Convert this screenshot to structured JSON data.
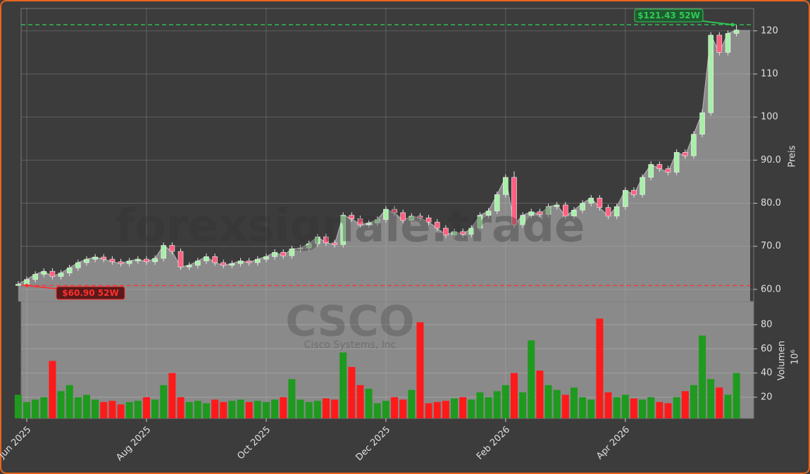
{
  "chart_data": {
    "type": "candlestick",
    "watermark": "forexsignale.trade",
    "symbol": "CSCO",
    "company": "Cisco Systems, Inc",
    "y_label": "Preis",
    "volume_label": "Volumen",
    "volume_unit": "10⁶",
    "categories": [
      null,
      "Jun 2025",
      null,
      null,
      null,
      null,
      null,
      null,
      null,
      null,
      null,
      null,
      null,
      null,
      null,
      "Aug 2025",
      null,
      null,
      null,
      null,
      null,
      null,
      null,
      null,
      null,
      null,
      null,
      null,
      null,
      "Oct 2025",
      null,
      null,
      null,
      null,
      null,
      null,
      null,
      null,
      null,
      null,
      null,
      null,
      null,
      "Dec 2025",
      null,
      null,
      null,
      null,
      null,
      null,
      null,
      null,
      null,
      null,
      null,
      null,
      null,
      "Feb 2026",
      null,
      null,
      null,
      null,
      null,
      null,
      null,
      null,
      null,
      null,
      null,
      null,
      null,
      "Apr 2026",
      null,
      null,
      null,
      null,
      null,
      null,
      null,
      null,
      null,
      null,
      null,
      null,
      null
    ],
    "open": [
      60.9,
      61.2,
      62.3,
      63.5,
      64.2,
      63.0,
      63.8,
      65.0,
      66.2,
      67.0,
      67.5,
      67.0,
      66.4,
      66.0,
      66.6,
      67.0,
      66.4,
      67.2,
      70.2,
      68.8,
      65.2,
      65.6,
      66.6,
      67.6,
      66.2,
      65.6,
      66.0,
      66.6,
      66.2,
      67.0,
      67.6,
      68.6,
      67.8,
      69.4,
      69.6,
      70.6,
      72.2,
      70.8,
      70.4,
      77.2,
      76.4,
      75.0,
      75.4,
      76.2,
      78.6,
      77.8,
      76.0,
      77.0,
      76.6,
      75.6,
      74.2,
      72.6,
      73.4,
      72.8,
      74.2,
      77.2,
      78.2,
      82.0,
      86.0,
      75.0,
      77.2,
      78.0,
      77.4,
      79.2,
      79.6,
      77.0,
      78.4,
      80.0,
      81.2,
      79.0,
      77.0,
      79.2,
      83.0,
      82.0,
      86.0,
      89.0,
      88.0,
      87.2,
      91.8,
      91.0,
      96.0,
      101.0,
      119.0,
      115.0,
      119.4
    ],
    "high": [
      61.9,
      63.0,
      64.2,
      64.9,
      64.9,
      64.5,
      65.7,
      66.9,
      67.7,
      68.2,
      68.2,
      67.7,
      67.1,
      67.3,
      67.7,
      67.7,
      67.9,
      70.9,
      70.9,
      69.5,
      66.3,
      67.3,
      68.3,
      68.3,
      66.9,
      66.7,
      67.3,
      67.3,
      67.7,
      68.3,
      69.3,
      69.3,
      70.1,
      70.3,
      71.3,
      72.9,
      72.9,
      71.5,
      77.9,
      77.9,
      77.1,
      76.1,
      76.9,
      79.3,
      79.3,
      78.5,
      77.7,
      77.7,
      77.3,
      76.3,
      74.9,
      74.1,
      74.1,
      74.9,
      77.9,
      78.9,
      82.7,
      86.7,
      87.4,
      77.9,
      78.7,
      78.7,
      79.9,
      80.3,
      80.3,
      79.1,
      80.7,
      81.9,
      81.9,
      79.7,
      79.9,
      83.7,
      83.7,
      86.7,
      89.7,
      89.7,
      88.7,
      92.5,
      92.5,
      96.7,
      101.7,
      119.7,
      119.7,
      120.1,
      121.43
    ],
    "low": [
      60.9,
      60.5,
      61.6,
      62.8,
      62.3,
      62.3,
      63.1,
      64.3,
      65.5,
      66.3,
      66.3,
      65.7,
      65.3,
      65.3,
      65.9,
      65.7,
      65.7,
      66.5,
      68.1,
      64.5,
      64.5,
      64.9,
      65.9,
      65.5,
      64.9,
      64.9,
      65.3,
      65.5,
      65.5,
      66.3,
      66.9,
      67.1,
      67.1,
      68.7,
      68.9,
      69.9,
      70.1,
      69.7,
      69.7,
      75.7,
      74.3,
      74.3,
      74.7,
      75.5,
      77.1,
      75.3,
      75.3,
      75.9,
      74.9,
      73.5,
      71.9,
      71.9,
      72.1,
      72.1,
      73.5,
      76.5,
      77.5,
      81.3,
      74.3,
      74.3,
      76.5,
      76.7,
      76.7,
      78.5,
      76.3,
      76.3,
      77.7,
      79.3,
      78.3,
      76.3,
      76.3,
      78.5,
      81.3,
      81.3,
      85.3,
      87.3,
      86.5,
      86.5,
      90.3,
      90.3,
      95.3,
      100.3,
      114.3,
      114.3,
      118.7
    ],
    "close": [
      61.2,
      62.3,
      63.5,
      64.2,
      63.0,
      63.8,
      65.0,
      66.2,
      67.0,
      67.5,
      67.0,
      66.4,
      66.0,
      66.6,
      67.0,
      66.4,
      67.2,
      70.2,
      68.8,
      65.2,
      65.6,
      66.6,
      67.6,
      66.2,
      65.6,
      66.0,
      66.6,
      66.2,
      67.0,
      67.6,
      68.6,
      67.8,
      69.4,
      69.6,
      70.6,
      72.2,
      70.8,
      70.4,
      77.2,
      76.4,
      75.0,
      75.4,
      76.2,
      78.6,
      77.8,
      76.0,
      77.0,
      76.6,
      75.6,
      74.2,
      72.6,
      73.4,
      72.8,
      74.2,
      77.2,
      78.2,
      82.0,
      86.0,
      75.0,
      77.2,
      78.0,
      77.4,
      79.2,
      79.6,
      77.0,
      78.4,
      80.0,
      81.2,
      79.0,
      77.0,
      79.2,
      83.0,
      82.0,
      86.0,
      89.0,
      88.0,
      87.2,
      91.8,
      91.0,
      96.0,
      101.0,
      119.0,
      115.0,
      119.4,
      120.2
    ],
    "volume": [
      22,
      16,
      18,
      20,
      50,
      25,
      30,
      20,
      22,
      18,
      16,
      17,
      14,
      16,
      17,
      20,
      18,
      30,
      40,
      20,
      16,
      17,
      15,
      18,
      16,
      17,
      18,
      16,
      17,
      16,
      18,
      20,
      35,
      18,
      16,
      17,
      19,
      18,
      57,
      45,
      30,
      27,
      15,
      17,
      20,
      18,
      26,
      82,
      15,
      16,
      17,
      19,
      20,
      18,
      24,
      20,
      25,
      30,
      40,
      24,
      67,
      42,
      30,
      26,
      22,
      28,
      20,
      18,
      85,
      24,
      20,
      22,
      19,
      18,
      20,
      16,
      15,
      20,
      25,
      30,
      71,
      35,
      28,
      22,
      40
    ],
    "up_color": "#1e9a1e",
    "down_color": "#ff1a1a",
    "ylim": [
      57.2,
      125.2
    ],
    "yticks": [
      {
        "value": 60,
        "label": "60.0"
      },
      {
        "value": 70,
        "label": "70.0"
      },
      {
        "value": 80,
        "label": "80.0"
      },
      {
        "value": 90,
        "label": "90.0"
      },
      {
        "value": 100,
        "label": "100"
      },
      {
        "value": 110,
        "label": "110"
      },
      {
        "value": 120,
        "label": "120"
      }
    ],
    "volume_lim": [
      2.5,
      99.2
    ],
    "volume_ticks": [
      20,
      40,
      60,
      80
    ],
    "annotations": [
      {
        "label": "$121.43 52W",
        "value": 121.43,
        "color": "#2ecc55"
      },
      {
        "label": "$60.90 52W",
        "value": 60.9,
        "color": "#ff3030"
      }
    ],
    "grid": true
  }
}
